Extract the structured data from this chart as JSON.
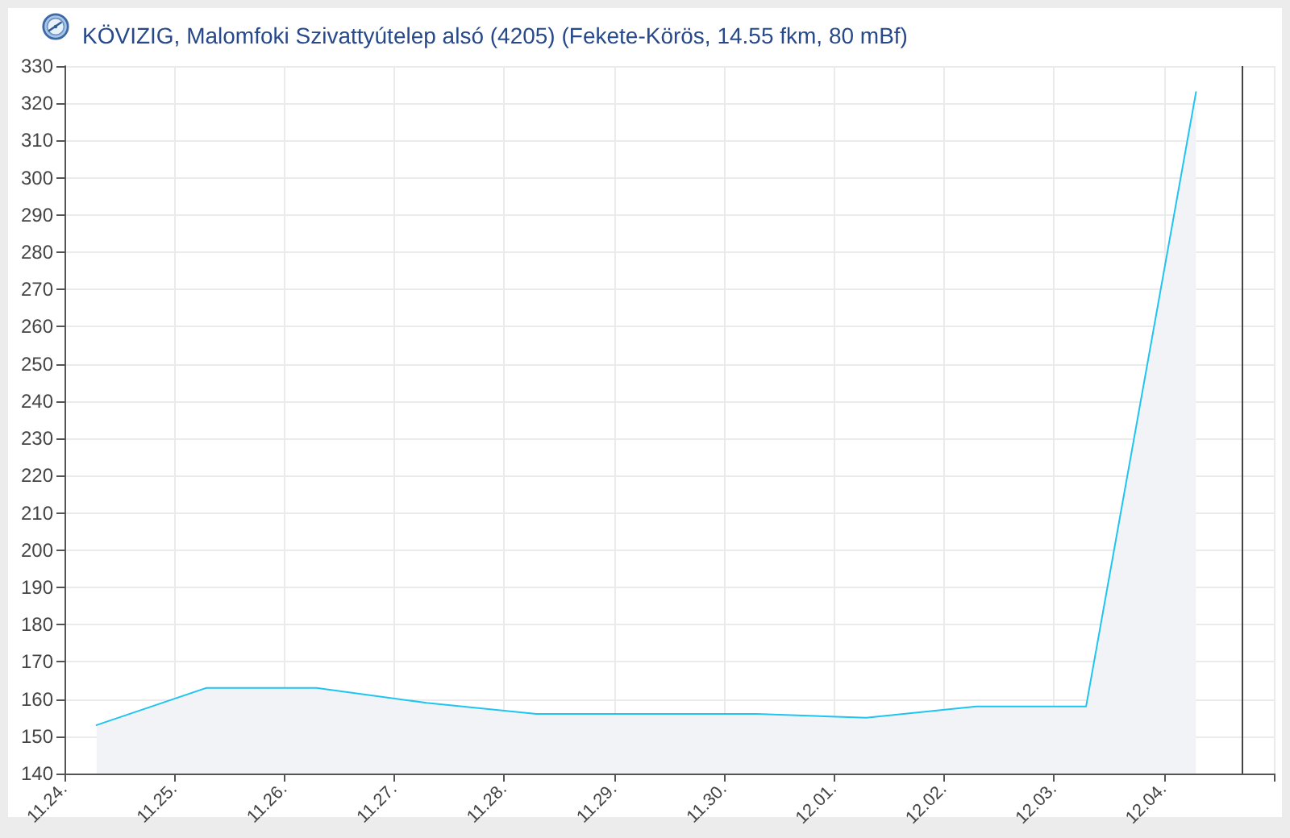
{
  "chart_data": {
    "type": "area",
    "title": "KÖVIZIG, Malomfoki Szivattyútelep alsó (4205) (Fekete-Körös, 14.55 fkm, 80 mBf)",
    "x": [
      "--11-24T07:00",
      "--11-25T07:00",
      "--11-26T07:00",
      "--11-27T07:00",
      "--11-28T07:00",
      "--11-29T07:00",
      "--11-30T07:00",
      "--12-01T07:00",
      "--12-02T07:00",
      "--12-03T07:00",
      "--12-04T07:00"
    ],
    "values": [
      153,
      163,
      163,
      159,
      156,
      156,
      156,
      155,
      158,
      158,
      323
    ],
    "color": "#1fc4f1",
    "xlim": [
      "--11-24",
      "--12-05"
    ],
    "xticks": [
      {
        "value": "--11-24",
        "label": "11.24."
      },
      {
        "value": "--11-25",
        "label": "11.25."
      },
      {
        "value": "--11-26",
        "label": "11.26."
      },
      {
        "value": "--11-27",
        "label": "11.27."
      },
      {
        "value": "--11-28",
        "label": "11.28."
      },
      {
        "value": "--11-29",
        "label": "11.29."
      },
      {
        "value": "--11-30",
        "label": "11.30."
      },
      {
        "value": "--12-01",
        "label": "12.01."
      },
      {
        "value": "--12-02",
        "label": "12.02."
      },
      {
        "value": "--12-03",
        "label": "12.03."
      },
      {
        "value": "--12-04",
        "label": "12.04."
      },
      {
        "value": "--12-05",
        "label": null
      }
    ],
    "ylim": [
      140,
      330
    ],
    "yticks": [
      140,
      150,
      160,
      170,
      180,
      190,
      200,
      210,
      220,
      230,
      240,
      250,
      260,
      270,
      280,
      290,
      300,
      310,
      320,
      330
    ],
    "grid": true,
    "marker": "none",
    "ref_lines": [
      {
        "axis": "x",
        "value": "--12-04T17:00",
        "color": "#444444"
      }
    ]
  }
}
